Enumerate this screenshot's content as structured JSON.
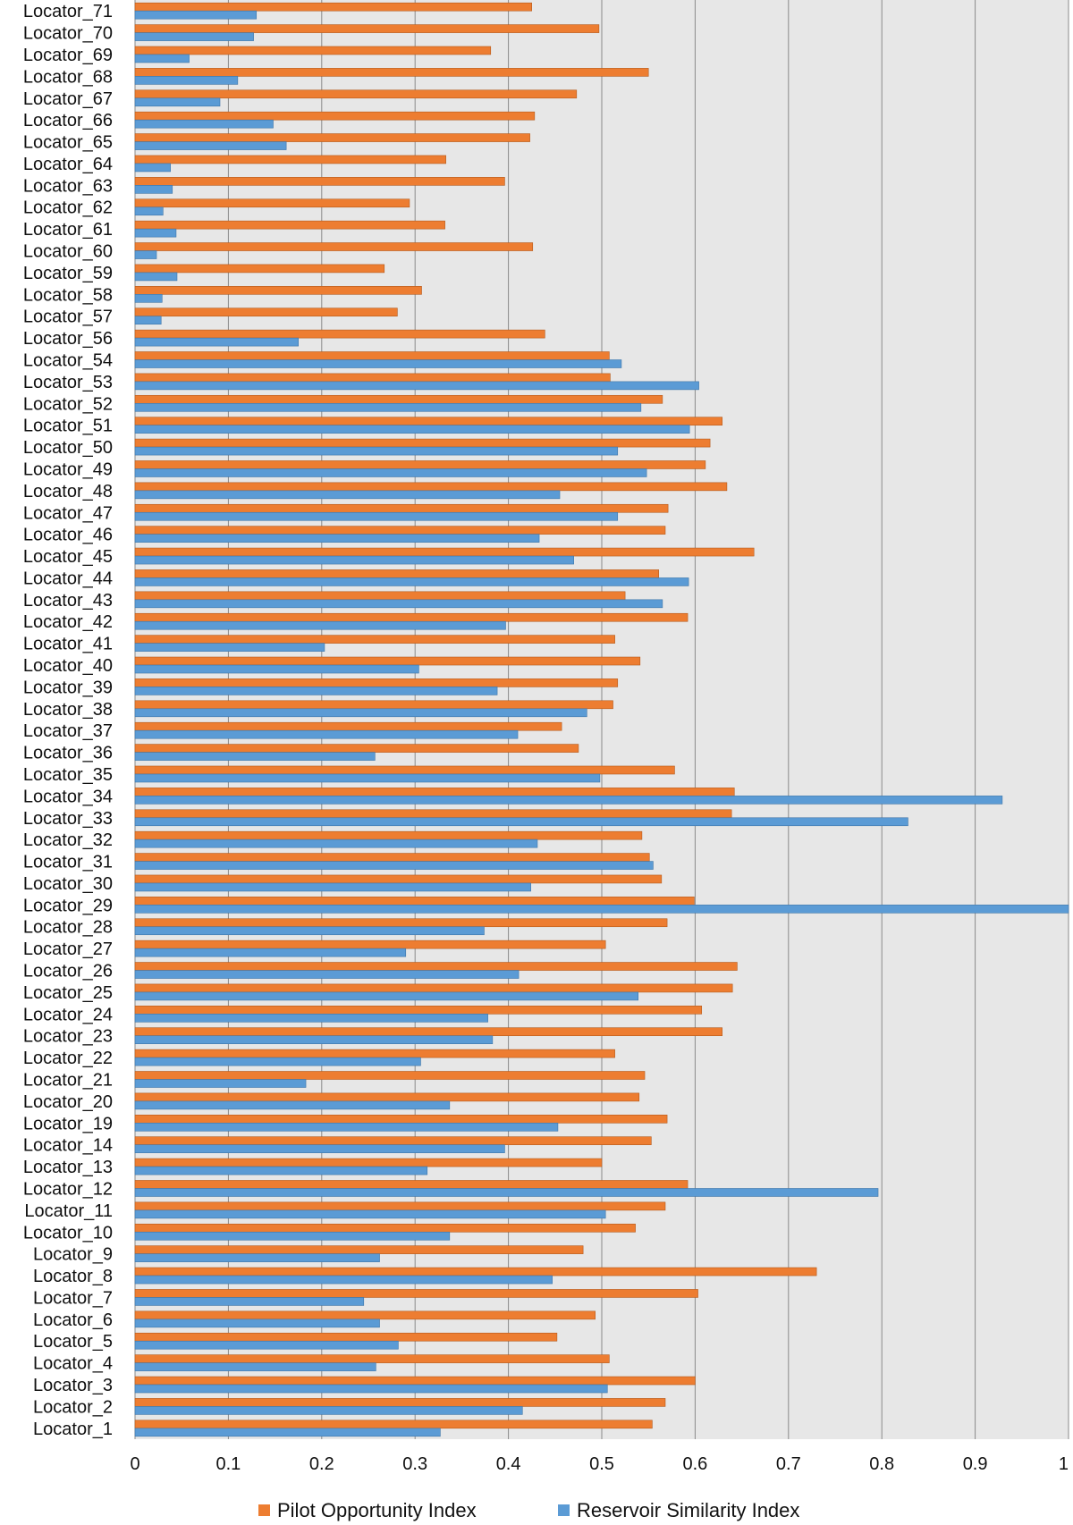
{
  "chart_data": {
    "type": "bar",
    "orientation": "horizontal",
    "categories": [
      "Locator_71",
      "Locator_70",
      "Locator_69",
      "Locator_68",
      "Locator_67",
      "Locator_66",
      "Locator_65",
      "Locator_64",
      "Locator_63",
      "Locator_62",
      "Locator_61",
      "Locator_60",
      "Locator_59",
      "Locator_58",
      "Locator_57",
      "Locator_56",
      "Locator_54",
      "Locator_53",
      "Locator_52",
      "Locator_51",
      "Locator_50",
      "Locator_49",
      "Locator_48",
      "Locator_47",
      "Locator_46",
      "Locator_45",
      "Locator_44",
      "Locator_43",
      "Locator_42",
      "Locator_41",
      "Locator_40",
      "Locator_39",
      "Locator_38",
      "Locator_37",
      "Locator_36",
      "Locator_35",
      "Locator_34",
      "Locator_33",
      "Locator_32",
      "Locator_31",
      "Locator_30",
      "Locator_29",
      "Locator_28",
      "Locator_27",
      "Locator_26",
      "Locator_25",
      "Locator_24",
      "Locator_23",
      "Locator_22",
      "Locator_21",
      "Locator_20",
      "Locator_19",
      "Locator_14",
      "Locator_13",
      "Locator_12",
      "Locator_11",
      "Locator_10",
      "Locator_9",
      "Locator_8",
      "Locator_7",
      "Locator_6",
      "Locator_5",
      "Locator_4",
      "Locator_3",
      "Locator_2",
      "Locator_1"
    ],
    "series": [
      {
        "name": "Pilot Opportunity Index",
        "color": "#ED7D31",
        "values": [
          0.425,
          0.497,
          0.381,
          0.55,
          0.473,
          0.428,
          0.423,
          0.333,
          0.396,
          0.294,
          0.332,
          0.426,
          0.267,
          0.307,
          0.281,
          0.439,
          0.508,
          0.509,
          0.565,
          0.629,
          0.616,
          0.611,
          0.634,
          0.571,
          0.568,
          0.663,
          0.561,
          0.525,
          0.592,
          0.514,
          0.541,
          0.517,
          0.512,
          0.457,
          0.475,
          0.578,
          0.642,
          0.639,
          0.543,
          0.551,
          0.564,
          0.599,
          0.57,
          0.504,
          0.645,
          0.64,
          0.607,
          0.629,
          0.514,
          0.546,
          0.54,
          0.57,
          0.553,
          0.5,
          0.592,
          0.568,
          0.536,
          0.48,
          0.73,
          0.603,
          0.493,
          0.452,
          0.508,
          0.6,
          0.568,
          0.554
        ]
      },
      {
        "name": "Reservoir Similarity Index",
        "color": "#5B9BD5",
        "values": [
          0.13,
          0.127,
          0.058,
          0.11,
          0.091,
          0.148,
          0.162,
          0.038,
          0.04,
          0.03,
          0.044,
          0.023,
          0.045,
          0.029,
          0.028,
          0.175,
          0.521,
          0.604,
          0.542,
          0.594,
          0.517,
          0.548,
          0.455,
          0.517,
          0.433,
          0.47,
          0.593,
          0.565,
          0.397,
          0.203,
          0.304,
          0.388,
          0.484,
          0.41,
          0.257,
          0.498,
          0.929,
          0.828,
          0.431,
          0.555,
          0.424,
          1.0,
          0.374,
          0.29,
          0.411,
          0.539,
          0.378,
          0.383,
          0.306,
          0.183,
          0.337,
          0.453,
          0.396,
          0.313,
          0.796,
          0.504,
          0.337,
          0.262,
          0.447,
          0.245,
          0.262,
          0.282,
          0.258,
          0.506,
          0.415,
          0.327
        ]
      }
    ],
    "xlim": [
      0,
      1
    ],
    "xticks": [
      "0",
      "0.1",
      "0.2",
      "0.3",
      "0.4",
      "0.5",
      "0.6",
      "0.7",
      "0.8",
      "0.9",
      "1"
    ],
    "title": "",
    "xlabel": "",
    "ylabel": "",
    "grid": "vertical",
    "plot_background": "#E7E7E7",
    "legend_position": "bottom"
  }
}
